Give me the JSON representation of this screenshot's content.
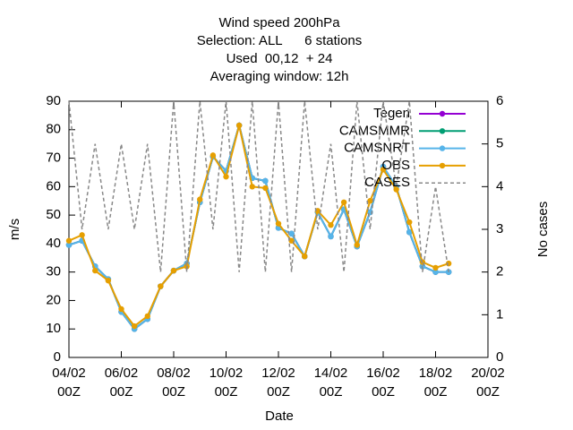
{
  "chart_data": {
    "type": "line",
    "title": "Wind speed 200hPa\nSelection: ALL      6 stations\nUsed  00,12  + 24\nAveraging window: 12h",
    "xlabel": "Date",
    "ylabel": "m/s",
    "y2label": "No cases",
    "x": [
      4,
      4.5,
      5,
      5.5,
      6,
      6.5,
      7,
      7.5,
      8,
      8.5,
      9,
      9.5,
      10,
      10.5,
      11,
      11.5,
      12,
      12.5,
      13,
      13.5,
      14,
      14.5,
      15,
      15.5,
      16,
      16.5,
      17,
      17.5,
      18,
      18.5
    ],
    "xlim": [
      4,
      20
    ],
    "xticks": [
      {
        "value": 4,
        "label": "04/02\n00Z"
      },
      {
        "value": 6,
        "label": "06/02\n00Z"
      },
      {
        "value": 8,
        "label": "08/02\n00Z"
      },
      {
        "value": 10,
        "label": "10/02\n00Z"
      },
      {
        "value": 12,
        "label": "12/02\n00Z"
      },
      {
        "value": 14,
        "label": "14/02\n00Z"
      },
      {
        "value": 16,
        "label": "16/02\n00Z"
      },
      {
        "value": 18,
        "label": "18/02\n00Z"
      },
      {
        "value": 20,
        "label": "20/02\n00Z"
      }
    ],
    "ylim": [
      0,
      90
    ],
    "yticks": [
      0,
      10,
      20,
      30,
      40,
      50,
      60,
      70,
      80,
      90
    ],
    "y2lim": [
      0,
      6
    ],
    "y2ticks": [
      0,
      1,
      2,
      3,
      4,
      5,
      6
    ],
    "legend": "upper right",
    "series": [
      {
        "name": "Tegen",
        "color": "#9400d3",
        "values": [
          39.5,
          41,
          32,
          27.5,
          16,
          10,
          13.5,
          25,
          30.5,
          33,
          54.5,
          70.5,
          65.5,
          81.5,
          63,
          62,
          45.5,
          43.5,
          35.5,
          51,
          42.5,
          52,
          39,
          51,
          67,
          60,
          44,
          32,
          30,
          30
        ]
      },
      {
        "name": "CAMSMMR",
        "color": "#009e73",
        "values": [
          39.5,
          41,
          32,
          27.5,
          16,
          10,
          13.5,
          25,
          30.5,
          33,
          54.5,
          70.5,
          65.5,
          81.5,
          63,
          62,
          45.5,
          43.5,
          35.5,
          51,
          42.5,
          52,
          39,
          51,
          67,
          60,
          44,
          32,
          30,
          30
        ]
      },
      {
        "name": "CAMSNRT",
        "color": "#56b4e9",
        "values": [
          39.5,
          41,
          32,
          27.5,
          16,
          10,
          13.5,
          25,
          30.5,
          33,
          54.5,
          70.5,
          65.5,
          81.5,
          63,
          62,
          45.5,
          43.5,
          35.5,
          51,
          42.5,
          52,
          39,
          51,
          67,
          60,
          44,
          32,
          30,
          30
        ]
      },
      {
        "name": "OBS",
        "color": "#e69f00",
        "values": [
          41,
          43,
          30.5,
          27,
          17,
          11,
          14.5,
          25,
          30.5,
          32,
          55.5,
          71,
          63.5,
          81.5,
          60,
          59.5,
          47,
          41,
          35.5,
          51.5,
          46.5,
          54.5,
          39.5,
          55,
          66,
          59,
          47.5,
          33.5,
          31.5,
          33
        ]
      },
      {
        "name": "CASES",
        "color": "#888888",
        "axis": "y2",
        "dashed": true,
        "values": [
          6,
          3,
          5,
          3,
          5,
          3,
          5,
          2,
          6,
          2,
          6,
          3,
          6,
          2,
          6,
          2,
          6,
          2,
          6,
          3,
          5,
          2,
          6,
          3,
          6,
          4,
          6,
          2,
          4,
          2
        ]
      }
    ]
  }
}
